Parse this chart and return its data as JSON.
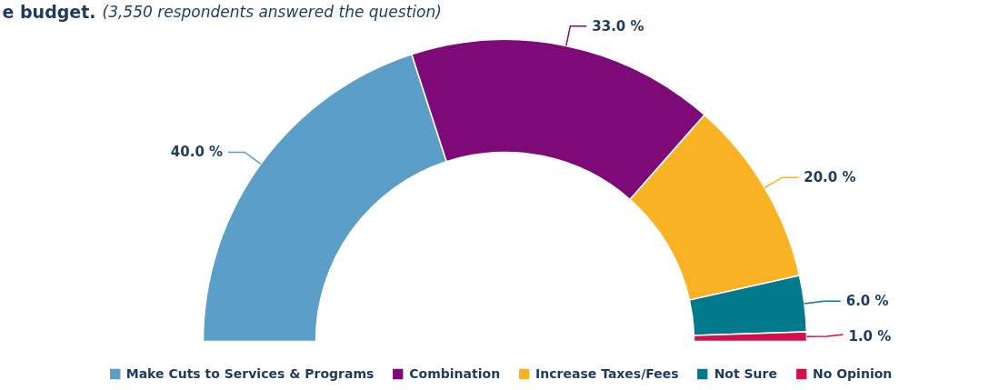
{
  "chart_data": {
    "type": "donut",
    "title": "e budget.",
    "subtitle": "(3,550 respondents answered the question)",
    "categories": [
      "Make Cuts to Services & Programs",
      "Combination",
      "Increase Taxes/Fees",
      "Not Sure",
      "No Opinion"
    ],
    "values": [
      40,
      33,
      20,
      6,
      1
    ],
    "colors": [
      "#5b9fc9",
      "#7d0a76",
      "#f9b224",
      "#007a8c",
      "#d3104c"
    ],
    "value_labels": [
      "40.0 %",
      "33.0 %",
      "20.0 %",
      "6.0 %",
      "1.0 %"
    ],
    "legend": "bottom"
  }
}
